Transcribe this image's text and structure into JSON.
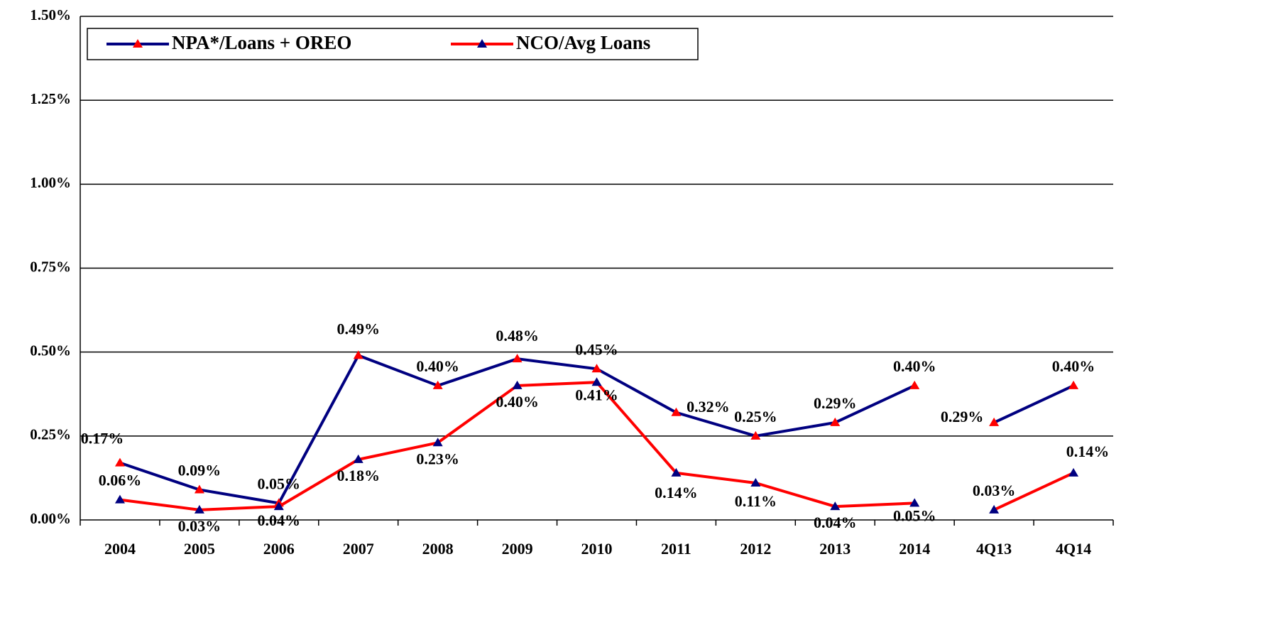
{
  "chart_data": {
    "type": "line",
    "categories": [
      "2004",
      "2005",
      "2006",
      "2007",
      "2008",
      "2009",
      "2010",
      "2011",
      "2012",
      "2013",
      "2014",
      "4Q13",
      "4Q14"
    ],
    "series": [
      {
        "name": "NPA*/Loans + OREO",
        "color": "#000080",
        "marker_color": "#ff0000",
        "values": [
          0.17,
          0.09,
          0.05,
          0.49,
          0.4,
          0.48,
          0.45,
          0.32,
          0.25,
          0.29,
          0.4,
          0.29,
          0.4
        ],
        "value_labels": [
          "0.17%",
          "0.09%",
          "0.05%",
          "0.49%",
          "0.40%",
          "0.48%",
          "0.45%",
          "0.32%",
          "0.25%",
          "0.29%",
          "0.40%",
          "0.29%",
          "0.40%"
        ]
      },
      {
        "name": "NCO/Avg Loans",
        "color": "#ff0000",
        "marker_color": "#000080",
        "values": [
          0.06,
          0.03,
          0.04,
          0.18,
          0.23,
          0.4,
          0.41,
          0.14,
          0.11,
          0.04,
          0.05,
          0.03,
          0.14
        ],
        "value_labels": [
          "0.06%",
          "0.03%",
          "0.04%",
          "0.18%",
          "0.23%",
          "0.40%",
          "0.41%",
          "0.14%",
          "0.11%",
          "0.04%",
          "0.05%",
          "0.03%",
          "0.14%"
        ]
      }
    ],
    "ylim": [
      0,
      1.5
    ],
    "yticks": [
      {
        "value": 0,
        "label": "0.00%"
      },
      {
        "value": 0.25,
        "label": "0.25%"
      },
      {
        "value": 0.5,
        "label": "0.50%"
      },
      {
        "value": 0.75,
        "label": "0.75%"
      },
      {
        "value": 1.0,
        "label": "1.00%"
      },
      {
        "value": 1.25,
        "label": "1.25%"
      },
      {
        "value": 1.5,
        "label": "1.50%"
      }
    ],
    "grid": true,
    "legend": "top-left"
  }
}
